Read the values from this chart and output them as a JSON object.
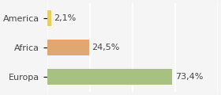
{
  "categories": [
    "America",
    "Africa",
    "Europa"
  ],
  "values": [
    2.1,
    24.5,
    73.4
  ],
  "labels": [
    "2,1%",
    "24,5%",
    "73,4%"
  ],
  "bar_colors": [
    "#e8d060",
    "#e0a870",
    "#a8c180"
  ],
  "background_color": "#f5f5f5",
  "xlim": [
    0,
    100
  ],
  "bar_height": 0.55,
  "label_fontsize": 8.0,
  "tick_fontsize": 8.0
}
